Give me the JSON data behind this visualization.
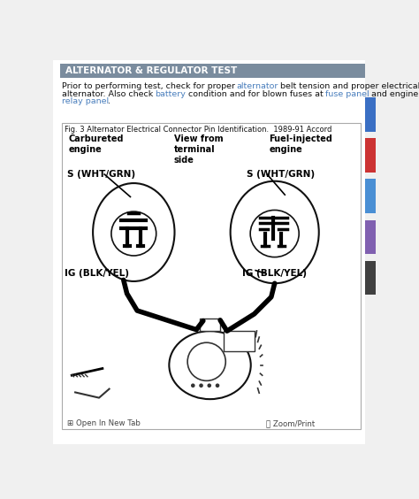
{
  "page_bg": "#f0f0f0",
  "content_bg": "#ffffff",
  "header_bg": "#7a8c9e",
  "header_text": "ALTERNATOR & REGULATOR TEST",
  "header_text_color": "#ffffff",
  "link_color": "#4a7fbd",
  "body_text_color": "#111111",
  "fig_caption": "Fig. 3 Alternator Electrical Connector Pin Identification.  1989-91 Accord",
  "label_carb": "Carbureted\nengine",
  "label_view": "View from\nterminal\nside",
  "label_fuel": "Fuel-injected\nengine",
  "label_s_left": "S (WHT/GRN)",
  "label_s_right": "S (WHT/GRN)",
  "label_ig_left": "IG (BLK/YEL)",
  "label_ig_right": "IG (BLK/YEL)",
  "footer_open": "Open In New Tab",
  "footer_zoom": "Zoom/Print",
  "sidebar_colors": [
    "#3a6fc4",
    "#cc3333",
    "#4a8fd4",
    "#8060b0",
    "#404040"
  ],
  "sidebar_y": [
    55,
    115,
    175,
    235,
    295
  ],
  "sidebar_h": [
    50,
    50,
    50,
    50,
    50
  ]
}
